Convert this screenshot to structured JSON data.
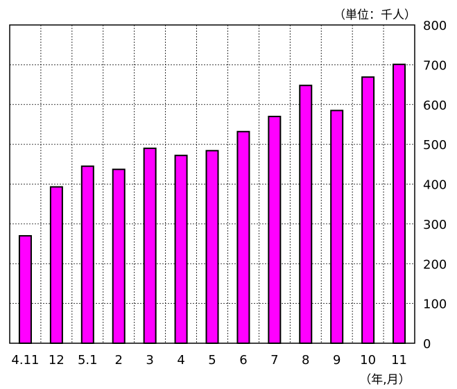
{
  "chart_data": {
    "type": "bar",
    "categories": [
      "4.11",
      "12",
      "5.1",
      "2",
      "3",
      "4",
      "5",
      "6",
      "7",
      "8",
      "9",
      "10",
      "11"
    ],
    "values": [
      270,
      393,
      445,
      437,
      490,
      472,
      484,
      532,
      570,
      648,
      585,
      669,
      701
    ],
    "y_unit_label": "（単位：千人）",
    "x_unit_label": "（年,月）",
    "ylim": [
      0,
      800
    ],
    "y_ticks": [
      0,
      100,
      200,
      300,
      400,
      500,
      600,
      700,
      800
    ],
    "y_axis_side": "right",
    "grid": "dotted",
    "bar_color": "#ff00ff",
    "bar_edge_color": "#000000"
  }
}
